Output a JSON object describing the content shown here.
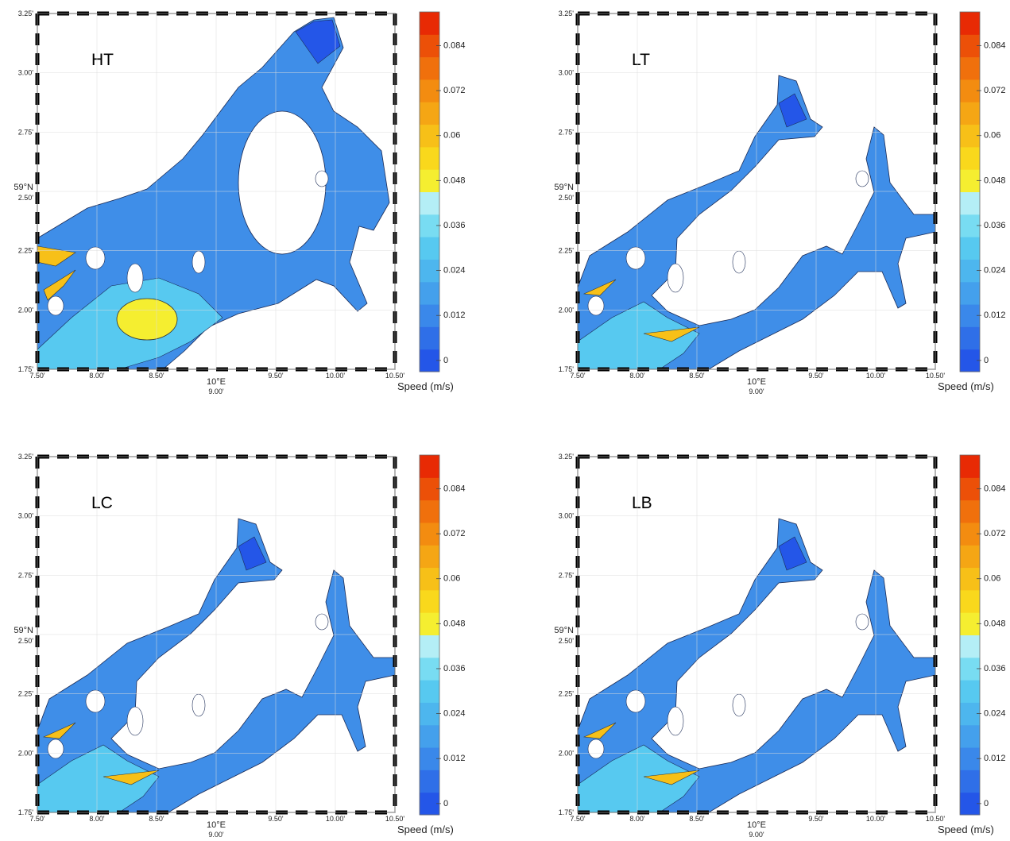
{
  "panels": [
    {
      "label": "HT"
    },
    {
      "label": "LT"
    },
    {
      "label": "LC"
    },
    {
      "label": "LB"
    }
  ],
  "axes": {
    "xlim": [
      7.5,
      10.5
    ],
    "ylim": [
      1.75,
      3.25
    ],
    "xticks": [
      {
        "value": 7.5,
        "label": "7.50'"
      },
      {
        "value": 8,
        "label": "8.00'"
      },
      {
        "value": 8.5,
        "label": "8.50'"
      },
      {
        "value": 9,
        "label": "9.00'"
      },
      {
        "value": 9.5,
        "label": "9.50'"
      },
      {
        "value": 10,
        "label": "10.00'"
      },
      {
        "value": 10.5,
        "label": "10.50'"
      }
    ],
    "yticks": [
      {
        "value": 1.75,
        "label": "1.75'"
      },
      {
        "value": 2,
        "label": "2.00'"
      },
      {
        "value": 2.25,
        "label": "2.25'"
      },
      {
        "value": 2.5,
        "label": "2.50'"
      },
      {
        "value": 2.75,
        "label": "2.75'"
      },
      {
        "value": 3,
        "label": "3.00'"
      },
      {
        "value": 3.25,
        "label": "3.25'"
      }
    ],
    "x_label": "10°E",
    "y_label": "59°N"
  },
  "colorbar": {
    "label": "Speed (m/s)",
    "lim": [
      -0.003,
      0.093
    ],
    "ticks": [
      0,
      0.012,
      0.024,
      0.036,
      0.048,
      0.06,
      0.072,
      0.084
    ],
    "colors": [
      "#2456e8",
      "#2f6fe8",
      "#3a88ea",
      "#44a0ec",
      "#4db6ee",
      "#57c9f0",
      "#78dcf2",
      "#b4eef6",
      "#f5ee30",
      "#f9d81c",
      "#f7c018",
      "#f5a614",
      "#f38c10",
      "#f0700c",
      "#ec5008",
      "#e82a04"
    ]
  }
}
